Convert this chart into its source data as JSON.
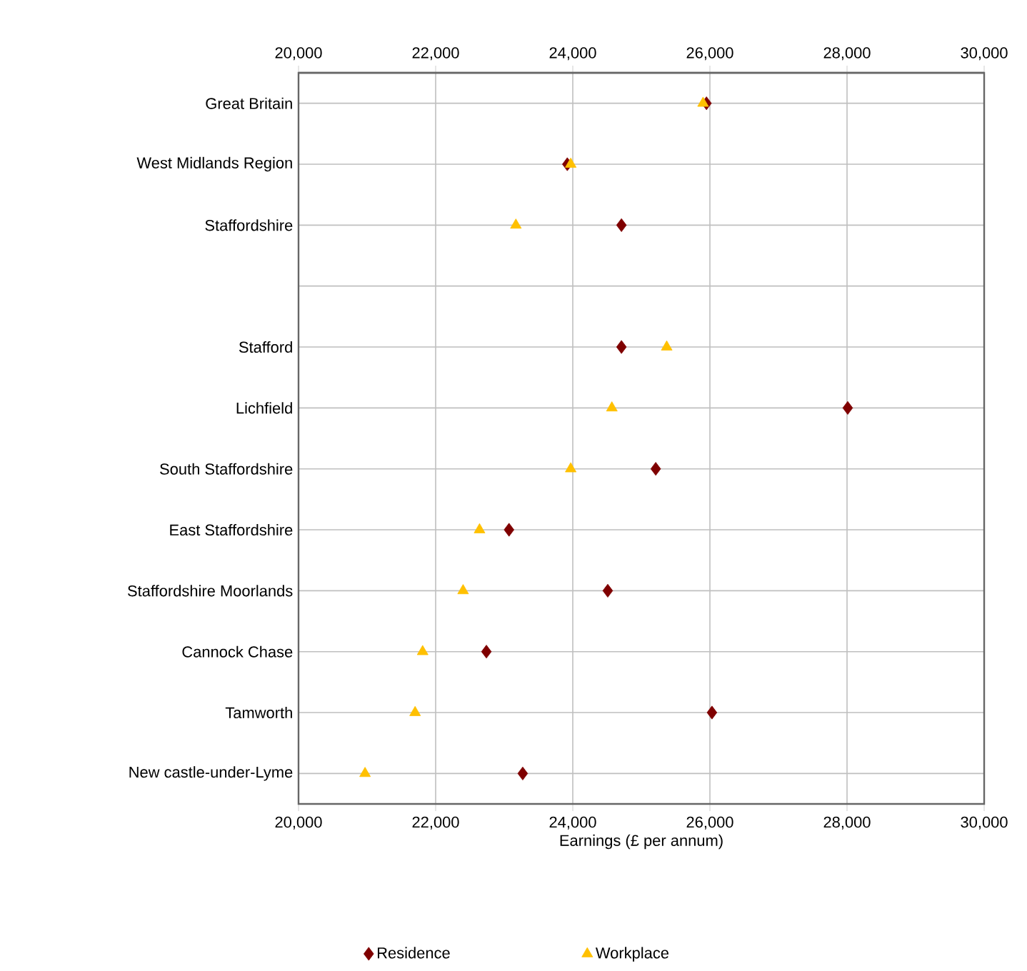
{
  "chart_data": {
    "type": "scatter",
    "orientation": "horizontal",
    "xlabel": "Earnings (£ per annum)",
    "categories": [
      "Great Britain",
      "West Midlands Region",
      "Staffordshire",
      null,
      "Stafford",
      "Lichfield",
      "South Staffordshire",
      "East Staffordshire",
      "Staffordshire Moorlands",
      "Cannock Chase",
      "Tamworth",
      "New castle-under-Lyme"
    ],
    "series": [
      {
        "name": "Residence",
        "color": "#7f0000",
        "marker": "diamond",
        "values": [
          25950,
          23920,
          24710,
          null,
          24710,
          28010,
          25210,
          23070,
          24510,
          22740,
          26030,
          23270
        ]
      },
      {
        "name": "Workplace",
        "color": "#ffc000",
        "marker": "triangle",
        "values": [
          25900,
          23970,
          23170,
          null,
          25370,
          24570,
          23970,
          22640,
          22400,
          21810,
          21700,
          20970
        ]
      }
    ],
    "xlim": [
      20000,
      30000
    ],
    "xticks": [
      {
        "value": 20000,
        "label": "20,000"
      },
      {
        "value": 22000,
        "label": "22,000"
      },
      {
        "value": 24000,
        "label": "24,000"
      },
      {
        "value": 26000,
        "label": "26,000"
      },
      {
        "value": 28000,
        "label": "28,000"
      },
      {
        "value": 30000,
        "label": "30,000"
      }
    ],
    "x2lim": [
      20000,
      30000
    ],
    "x2ticks": [
      {
        "value": 20000,
        "label": "20,000"
      },
      {
        "value": 22000,
        "label": "22,000"
      },
      {
        "value": 24000,
        "label": "24,000"
      },
      {
        "value": 26000,
        "label": "26,000"
      },
      {
        "value": 28000,
        "label": "28,000"
      },
      {
        "value": 30000,
        "label": "30,000"
      }
    ],
    "grid": true,
    "legend": "bottom"
  }
}
